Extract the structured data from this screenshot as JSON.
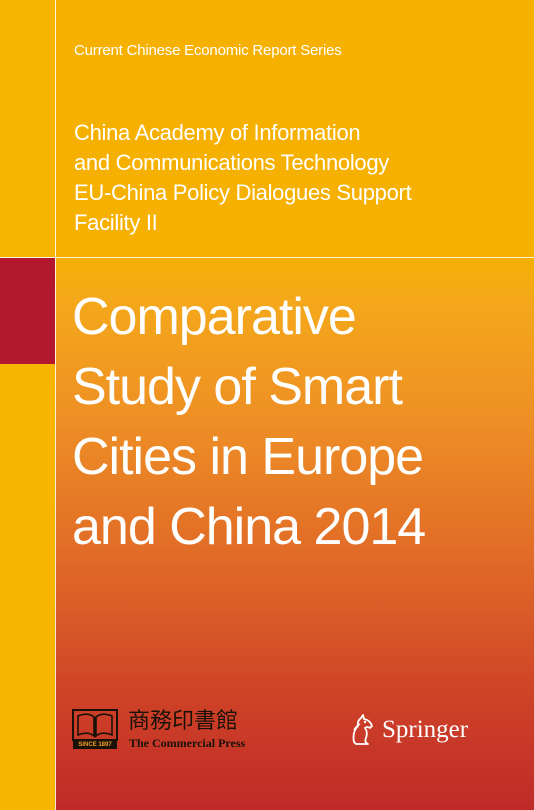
{
  "series": "Current Chinese Economic Report Series",
  "authors": [
    "China Academy of Information",
    "and Communications Technology",
    "EU-China Policy Dialogues Support",
    "Facility II"
  ],
  "title_lines": [
    "Comparative",
    "Study of Smart",
    "Cities in Europe",
    "and China 2014"
  ],
  "publisher_logo": {
    "chinese": "商務印書館",
    "english": "The Commercial Press",
    "since": "SINCE 1897"
  },
  "springer": "Springer",
  "colors": {
    "strip": "#f7b500",
    "strip_band": "#b3172e",
    "top": "#f6b100",
    "bottom": "#bf2a28"
  }
}
